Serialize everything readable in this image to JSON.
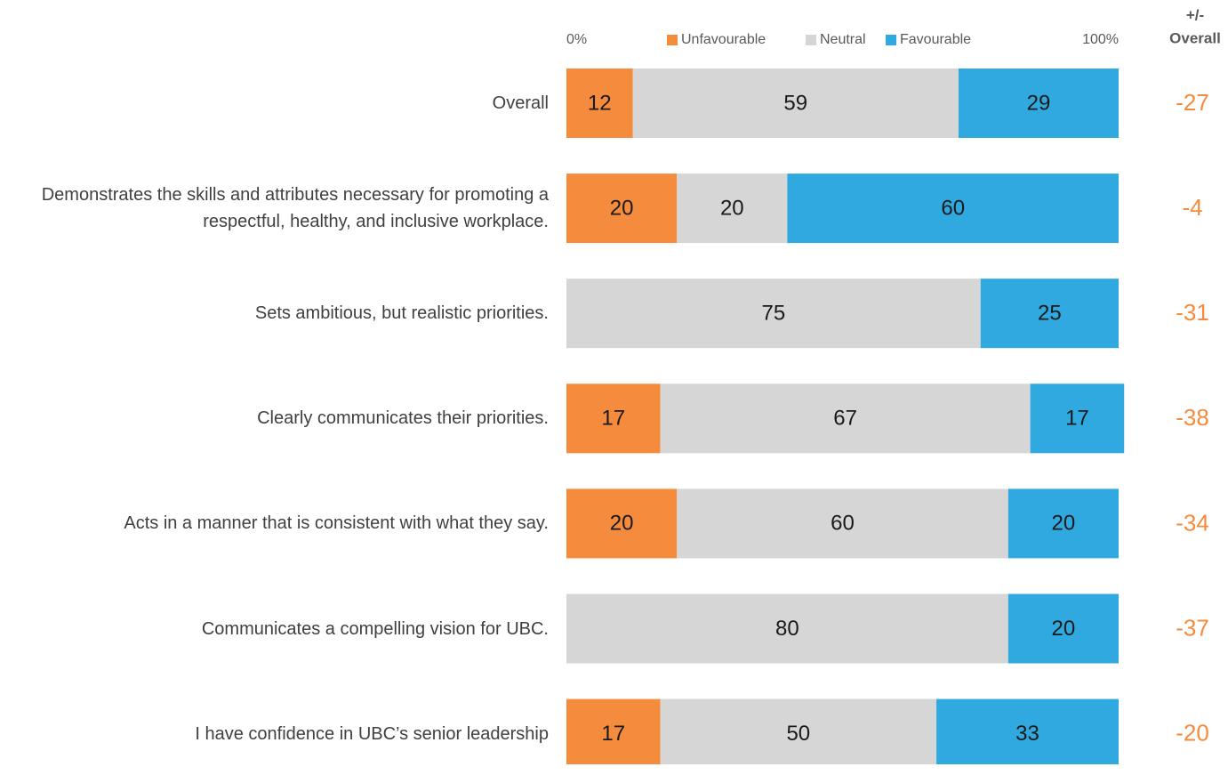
{
  "chart_data": {
    "type": "stacked-bar-horizontal",
    "categories": [
      "Overall",
      "Demonstrates the skills and attributes necessary for promoting a respectful, healthy, and inclusive workplace.",
      "Sets ambitious, but realistic priorities.",
      "Clearly communicates their priorities.",
      "Acts in a manner that is consistent with what they say.",
      "Communicates a compelling vision for UBC.",
      "I have confidence in UBC’s senior leadership"
    ],
    "series": [
      {
        "name": "Unfavourable",
        "color": "#f58b3c",
        "values": [
          12,
          20,
          0,
          17,
          20,
          0,
          17
        ]
      },
      {
        "name": "Neutral",
        "color": "#d6d6d6",
        "values": [
          59,
          20,
          75,
          67,
          60,
          80,
          50
        ]
      },
      {
        "name": "Favourable",
        "color": "#2fa9df",
        "values": [
          29,
          60,
          25,
          17,
          20,
          20,
          33
        ]
      }
    ],
    "xlim": [
      0,
      100
    ],
    "xticks": [
      {
        "value": 0,
        "label": "0%"
      },
      {
        "value": 100,
        "label": "100%"
      }
    ],
    "diff_header": [
      "+/-",
      "Overall"
    ],
    "diff_values": [
      -27,
      -4,
      -31,
      -38,
      -34,
      -37,
      -20
    ],
    "diff_color": "#f58b3c"
  }
}
